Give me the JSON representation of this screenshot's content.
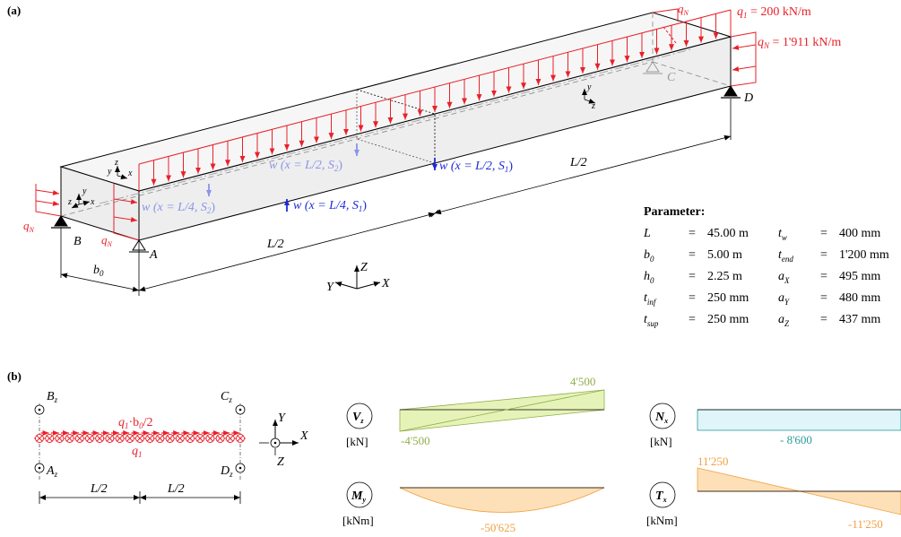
{
  "panel_a": {
    "label": "(a)",
    "q1_label": "q",
    "q1_sub": "1",
    "q1_value": " = 200 kN/m",
    "qN_label": "q",
    "qN_sub": "N",
    "qN_value": " = 1'911 kN/m",
    "w_mid_s1": "w (x = L/2, S",
    "w_mid_s1_sub": "1",
    "w_mid_s2": "w (x = L/2, S",
    "w_mid_s2_sub": "2",
    "w_qtr_s1": "w (x = L/4, S",
    "w_qtr_s1_sub": "1",
    "w_qtr_s2": "w (x = L/4, S",
    "w_qtr_s2_sub": "2",
    "support_A": "A",
    "support_B": "B",
    "support_C": "C",
    "support_D": "D",
    "half_span_1": "L/2",
    "half_span_2": "L/2",
    "width": "b",
    "width_sub": "0",
    "global_axes": {
      "x": "X",
      "y": "Y",
      "z": "Z"
    },
    "local_axes": {
      "x": "x",
      "y": "y",
      "z": "z"
    }
  },
  "parameters": {
    "title": "Parameter:",
    "left": [
      {
        "sym": "L",
        "sub": "",
        "eq": "=",
        "val": "45.00 m"
      },
      {
        "sym": "b",
        "sub": "0",
        "eq": "=",
        "val": "5.00 m"
      },
      {
        "sym": "h",
        "sub": "0",
        "eq": "=",
        "val": "2.25 m"
      },
      {
        "sym": "t",
        "sub": "inf",
        "eq": "=",
        "val": "250 mm"
      },
      {
        "sym": "t",
        "sub": "sup",
        "eq": "=",
        "val": "250 mm"
      }
    ],
    "right": [
      {
        "sym": "t",
        "sub": "w",
        "eq": "=",
        "val": "400 mm"
      },
      {
        "sym": "t",
        "sub": "end",
        "eq": "=",
        "val": "1'200 mm"
      },
      {
        "sym": "a",
        "sub": "X",
        "eq": "=",
        "val": "495 mm"
      },
      {
        "sym": "a",
        "sub": "Y",
        "eq": "=",
        "val": "480 mm"
      },
      {
        "sym": "a",
        "sub": "Z",
        "eq": "=",
        "val": "437 mm"
      }
    ]
  },
  "panel_b": {
    "label": "(b)",
    "Bz": "B",
    "Cz": "C",
    "Az": "A",
    "Dz": "D",
    "z_sub": "z",
    "load_top": "q",
    "load_top_sub": "1",
    "load_top_rest": "·b",
    "load_top_sub2": "0",
    "load_top_tail": "/2",
    "load_bottom": "q",
    "load_bottom_sub": "1",
    "span1": "L/2",
    "span2": "L/2",
    "axes": {
      "x": "X",
      "y": "Y",
      "z": "Z"
    }
  },
  "diagrams": [
    {
      "symbol": "V",
      "sub": "z",
      "unit": "[kN]",
      "max": "4'500",
      "min": "-4'500",
      "color": "#8fae4a"
    },
    {
      "symbol": "M",
      "sub": "y",
      "unit": "[kNm]",
      "min": "-50'625",
      "color": "#f0a040"
    },
    {
      "symbol": "N",
      "sub": "x",
      "unit": "[kN]",
      "value": "- 8'600",
      "color": "#2a9a9a"
    },
    {
      "symbol": "T",
      "sub": "x",
      "unit": "[kNm]",
      "max": "11'250",
      "min": "-11'250",
      "color": "#f0a040"
    }
  ]
}
